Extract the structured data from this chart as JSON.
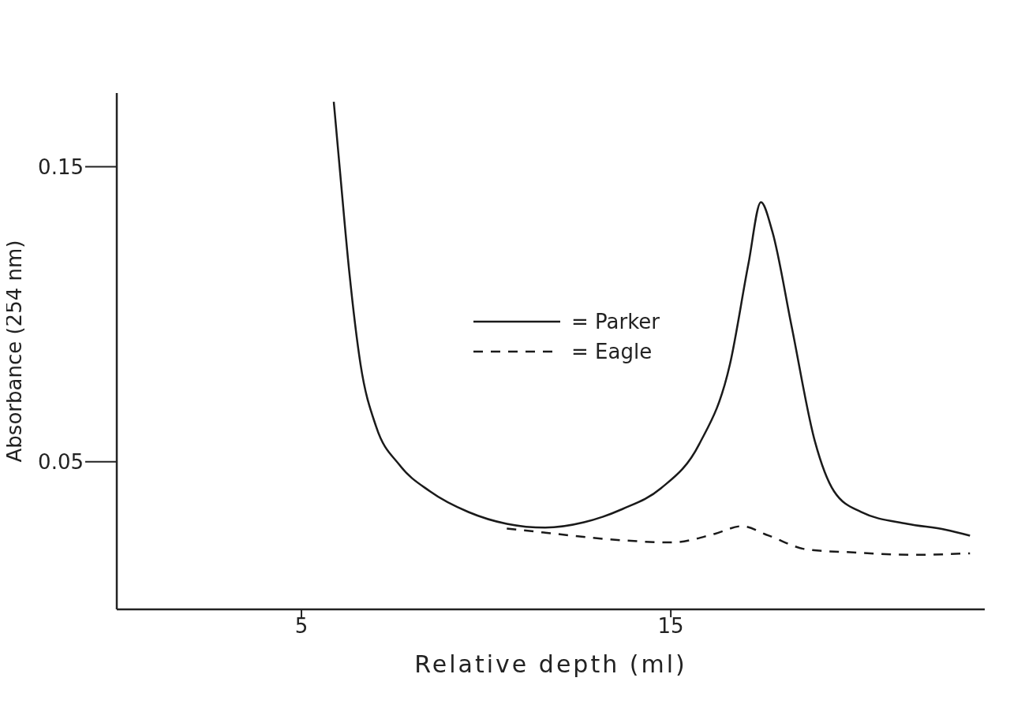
{
  "chart_data": {
    "type": "line",
    "xlabel": "Relative depth (ml)",
    "ylabel": "Absorbance (254 nm)",
    "xlim": [
      0,
      23.5
    ],
    "xticks": [
      5,
      15
    ],
    "ylim": [
      0,
      0.175
    ],
    "yticks": [
      0.05,
      0.15
    ],
    "grid": false,
    "legend": "center",
    "marker": "none",
    "series": [
      {
        "name": "= Parker",
        "color": "#1a1a1a",
        "line_style": "solid",
        "x": [
          5.875,
          6.04,
          6.29,
          6.6,
          7.02,
          7.65,
          8.48,
          9.52,
          10.56,
          11.6,
          12.65,
          13.69,
          14.73,
          15.77,
          16.6,
          17.1,
          17.44,
          17.75,
          18.27,
          18.9,
          19.42,
          20.15,
          21.4,
          22.44,
          23.1
        ],
        "values": [
          0.172,
          0.149,
          0.115,
          0.083,
          0.062,
          0.049,
          0.04,
          0.033,
          0.029,
          0.0277,
          0.0295,
          0.034,
          0.041,
          0.056,
          0.083,
          0.117,
          0.138,
          0.128,
          0.096,
          0.057,
          0.04,
          0.033,
          0.029,
          0.027,
          0.025
        ]
      },
      {
        "name": "= Eagle",
        "color": "#1a1a1a",
        "line_style": "dashed",
        "x": [
          10.56,
          11.6,
          13.27,
          15.04,
          16.19,
          16.92,
          17.65,
          18.69,
          19.94,
          21.6,
          23.1
        ],
        "values": [
          0.0274,
          0.026,
          0.0238,
          0.0227,
          0.0256,
          0.0282,
          0.025,
          0.0203,
          0.0193,
          0.0185,
          0.019
        ]
      }
    ]
  }
}
